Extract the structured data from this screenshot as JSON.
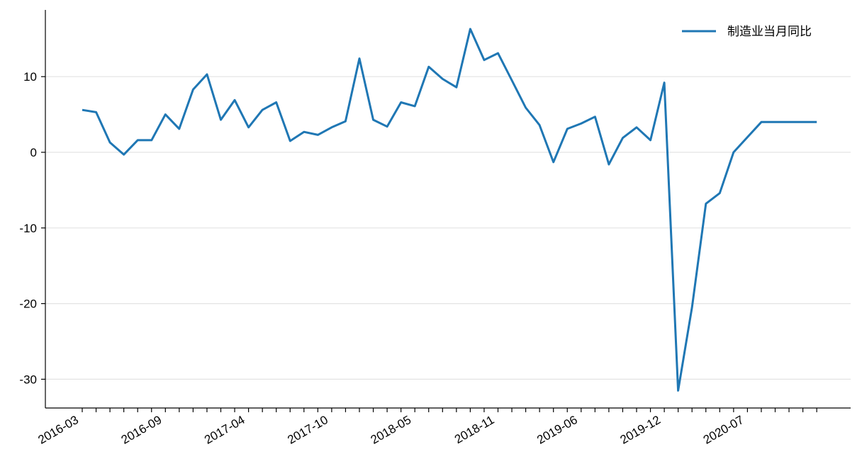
{
  "chart_data": {
    "type": "line",
    "title": "",
    "xlabel": "",
    "ylabel": "",
    "legend_position": "top-right",
    "grid": "horizontal",
    "ylim": [
      -34,
      19
    ],
    "yticks": [
      10,
      0,
      -10,
      -20,
      -30
    ],
    "ytick_labels": [
      "10",
      "0",
      "-10",
      "-20",
      "-30"
    ],
    "xtick_labels": [
      {
        "index": 0,
        "label": "2016-03"
      },
      {
        "index": 6,
        "label": "2016-09"
      },
      {
        "index": 12,
        "label": "2017-04"
      },
      {
        "index": 18,
        "label": "2017-10"
      },
      {
        "index": 24,
        "label": "2018-05"
      },
      {
        "index": 30,
        "label": "2018-11"
      },
      {
        "index": 36,
        "label": "2019-06"
      },
      {
        "index": 42,
        "label": "2019-12"
      },
      {
        "index": 48,
        "label": "2020-07"
      }
    ],
    "tick_count": 54,
    "series": [
      {
        "name": "制造业当月同比",
        "color": "#1f77b4",
        "values": [
          5.6,
          5.3,
          1.3,
          -0.3,
          1.6,
          1.6,
          5.0,
          3.1,
          8.3,
          10.3,
          4.3,
          6.9,
          3.3,
          5.6,
          6.6,
          1.5,
          2.7,
          2.3,
          3.3,
          4.1,
          12.4,
          4.3,
          3.4,
          6.6,
          6.1,
          11.3,
          9.7,
          8.6,
          16.3,
          12.2,
          13.1,
          9.5,
          5.9,
          3.6,
          -1.3,
          3.1,
          3.8,
          4.7,
          -1.6,
          1.9,
          3.3,
          1.6,
          9.2,
          -31.5,
          -20.5,
          -6.8,
          -5.4,
          0.0,
          2.0,
          4.0,
          4.0,
          4.0,
          4.0,
          4.0
        ]
      }
    ]
  }
}
